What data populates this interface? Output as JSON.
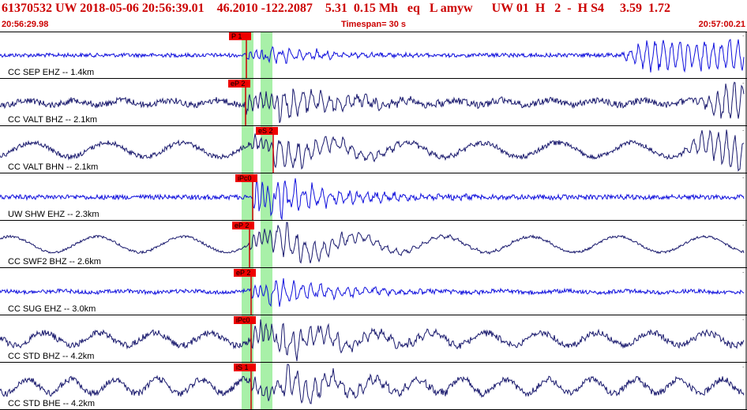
{
  "header": {
    "title": "61370532 UW 2018-05-06 20:56:39.01    46.2010 -122.2087    5.31  0.15 Mh   eq   L amyw      UW 01  H   2  -  H S4     3.59  1.72",
    "start_time": "20:56:29.98",
    "timespan": "Timespan=  30 s",
    "end_time": "20:57:00.21"
  },
  "colors": {
    "blue": "#1010dd",
    "navy": "#1a1a6e",
    "pick_box": "#ee0000",
    "pick_line": "#cc0000",
    "window": "#a8f0a8"
  },
  "traces": [
    {
      "label": "CC SEP EHZ -- 1.4km",
      "pick": "P 1",
      "color": "blue"
    },
    {
      "label": "CC VALT BHZ -- 2.1km",
      "pick": "eP 2",
      "color": "navy"
    },
    {
      "label": "CC VALT BHN -- 2.1km",
      "pick": "eS 2",
      "color": "navy"
    },
    {
      "label": "UW SHW EHZ -- 2.3km",
      "pick": "iPc0",
      "color": "blue"
    },
    {
      "label": "CC SWF2 BHZ -- 2.6km",
      "pick": "eP 2",
      "color": "navy"
    },
    {
      "label": "CC SUG EHZ -- 3.0km",
      "pick": "eP 2",
      "color": "blue"
    },
    {
      "label": "CC STD BHZ -- 4.2km",
      "pick": "iPc0",
      "color": "navy"
    },
    {
      "label": "CC STD BHE -- 4.2km",
      "pick": "iS 1",
      "color": "navy"
    }
  ]
}
